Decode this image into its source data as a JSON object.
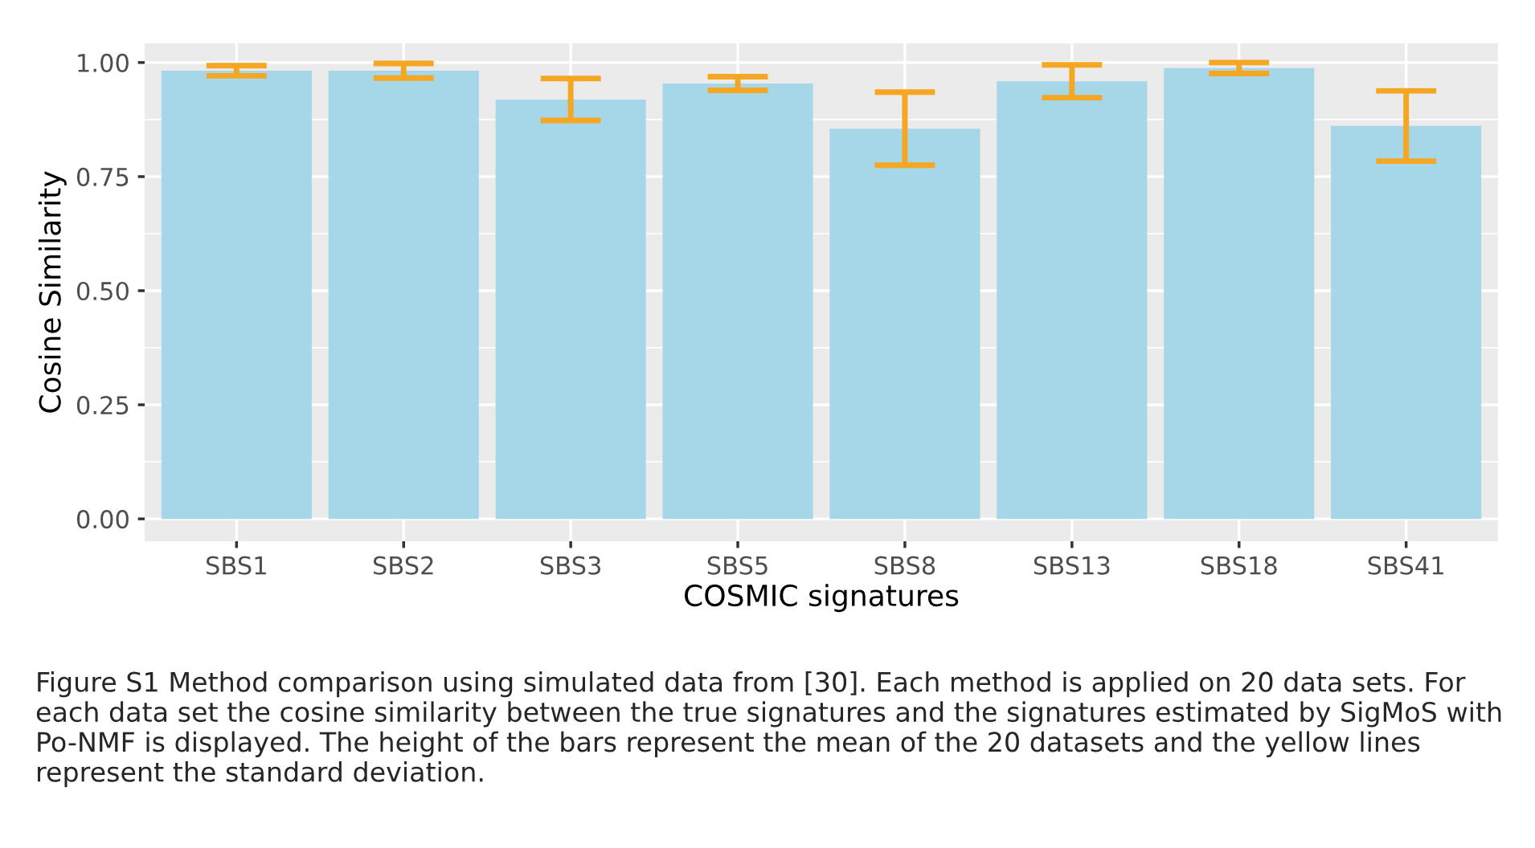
{
  "chart_data": {
    "type": "bar",
    "xlabel": "COSMIC signatures",
    "ylabel": "Cosine Similarity",
    "categories": [
      "SBS1",
      "SBS2",
      "SBS3",
      "SBS5",
      "SBS8",
      "SBS13",
      "SBS18",
      "SBS41"
    ],
    "values": [
      0.982,
      0.982,
      0.919,
      0.954,
      0.855,
      0.959,
      0.988,
      0.861
    ],
    "errors": [
      0.011,
      0.016,
      0.046,
      0.015,
      0.08,
      0.036,
      0.012,
      0.077
    ],
    "color": "#a6d7e9",
    "ylim": [
      -0.049,
      1.042
    ],
    "yticks": [
      {
        "value": 0,
        "label": "0.00"
      },
      {
        "value": 0.25,
        "label": "0.25"
      },
      {
        "value": 0.5,
        "label": "0.50"
      },
      {
        "value": 0.75,
        "label": "0.75"
      },
      {
        "value": 1,
        "label": "1.00"
      }
    ],
    "grid": true,
    "annotations": [
      "Figure S1 Method comparison using simulated data from [30]. Each method is applied on 20 data sets. For each data set the cosine similarity between the true signatures and the signatures estimated by SigMoS with Po-NMF is displayed. The height of the bars represent the mean of the 20 datasets and the yellow lines represent the standard deviation."
    ]
  }
}
